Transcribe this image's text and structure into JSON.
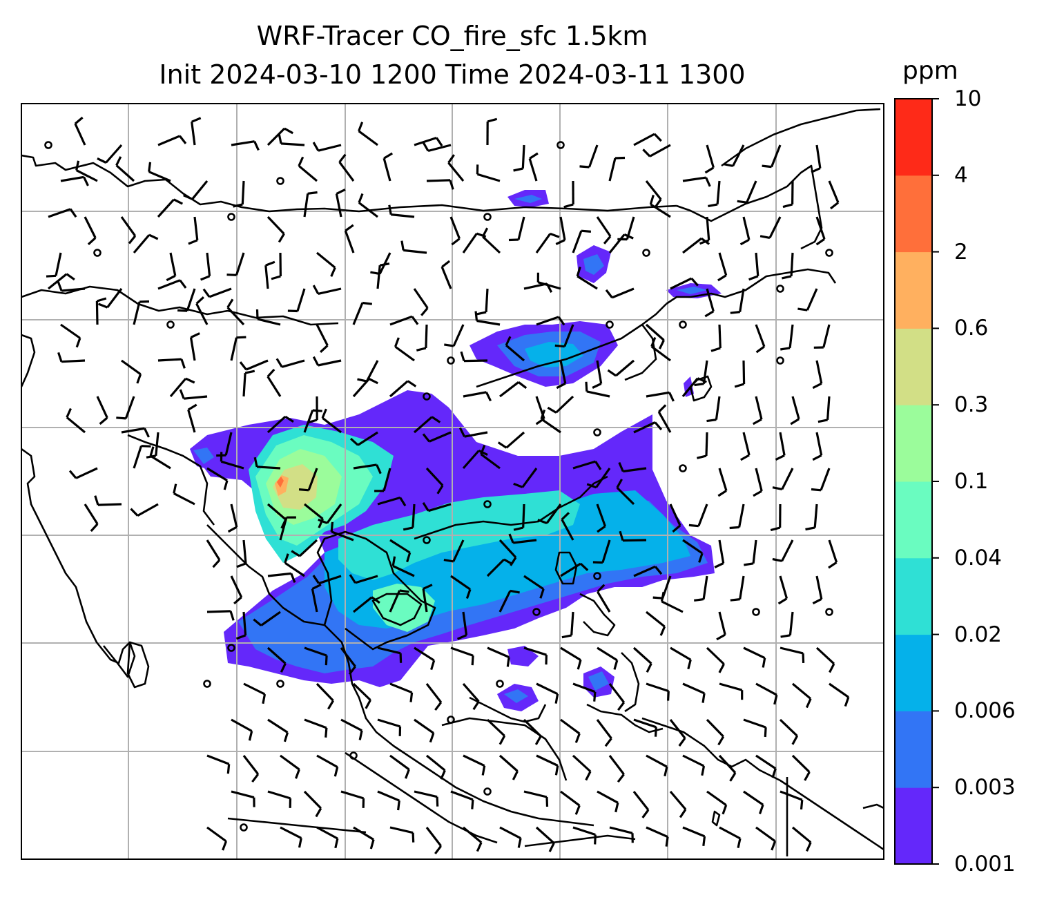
{
  "title": {
    "line1": "WRF-Tracer CO_fire_sfc 1.5km",
    "line2": "Init 2024-03-10 1200 Time 2024-03-11 1300"
  },
  "map": {
    "variable": "CO_fire_sfc",
    "level": "1.5km",
    "init_time": "2024-03-10 1200",
    "valid_time": "2024-03-11 1300",
    "overlay": "wind barbs",
    "coastlines": true,
    "gridlines": true,
    "gridline_color": "#b0b0b0"
  },
  "colorbar": {
    "unit": "ppm",
    "levels": [
      "0.001",
      "0.003",
      "0.006",
      "0.02",
      "0.04",
      "0.1",
      "0.3",
      "0.6",
      "2",
      "4",
      "10"
    ],
    "colors": [
      "#6428fa",
      "#3275f5",
      "#05b1ea",
      "#2fe0d5",
      "#6afcc0",
      "#9bfc9b",
      "#d2df86",
      "#ffb05f",
      "#ff6f3a",
      "#fe2a18"
    ]
  },
  "chart_data": {
    "type": "heatmap",
    "title": "WRF-Tracer CO_fire_sfc 1.5km\nInit 2024-03-10 1200 Time 2024-03-11 1300",
    "colorbar_label": "ppm",
    "colorbar_ticks": [
      0.001,
      0.003,
      0.006,
      0.02,
      0.04,
      0.1,
      0.3,
      0.6,
      2,
      4,
      10
    ],
    "colorbar_colors": [
      "#6428fa",
      "#3275f5",
      "#05b1ea",
      "#2fe0d5",
      "#6afcc0",
      "#9bfc9b",
      "#d2df86",
      "#ffb05f",
      "#ff6f3a",
      "#fe2a18"
    ],
    "grid": true
  }
}
